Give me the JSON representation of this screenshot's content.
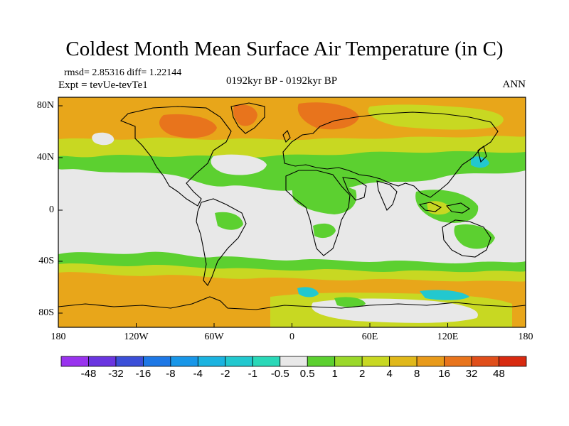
{
  "title": "Coldest Month Mean Surface Air Temperature (in C)",
  "stats": "rmsd= 2.85316 diff= 1.22144",
  "expt": "Expt = tevUe-tevTe1",
  "period": "0192kyr BP - 0192kyr BP",
  "season": "ANN",
  "lat_ticks": [
    "80N",
    "40N",
    "0",
    "40S",
    "80S"
  ],
  "lon_ticks": [
    "180",
    "120W",
    "60W",
    "0",
    "60E",
    "120E",
    "180"
  ],
  "colorbar": {
    "labels": [
      "-48",
      "-32",
      "-16",
      "-8",
      "-4",
      "-2",
      "-1",
      "-0.5",
      "0.5",
      "1",
      "2",
      "4",
      "8",
      "16",
      "32",
      "48"
    ],
    "colors": [
      "#9933ee",
      "#6a35e0",
      "#3b4fd8",
      "#1e78e6",
      "#1896e8",
      "#1bb3e0",
      "#22c8cf",
      "#2ad8b8",
      "#e8e8e8",
      "#5cd030",
      "#9ad82a",
      "#c8d822",
      "#e0b81a",
      "#e89a1a",
      "#e8741c",
      "#e04e1a",
      "#d82a10"
    ]
  },
  "map": {
    "lon_range": [
      -180,
      180
    ],
    "lat_range": [
      -90,
      90
    ],
    "background_color": "#e8e8e8"
  }
}
